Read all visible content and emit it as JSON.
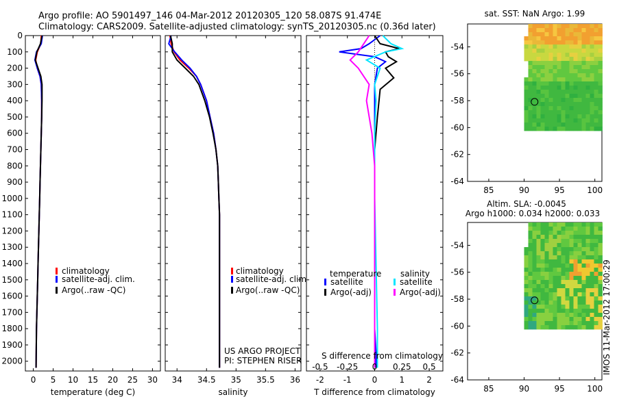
{
  "title_line1": "Argo profile: AO 5901497_146 04-Mar-2012 20120305_120 58.087S 91.474E",
  "title_line2": "Climatology: CARS2009. Satellite-adjusted climatology: synTS_20120305.nc (0.36d later)",
  "colors": {
    "climatology": "#ff0000",
    "satellite": "#0000ff",
    "argo": "#000000",
    "cyan": "#00e5ff",
    "magenta": "#ff00ff"
  },
  "chart_data": [
    {
      "type": "line",
      "id": "temperature",
      "xlabel": "temperature (deg C)",
      "ylabel": "",
      "xlim": [
        -2,
        32
      ],
      "ylim": [
        2060,
        0
      ],
      "xticks": [
        "0",
        "5",
        "10",
        "15",
        "20",
        "25",
        "30"
      ],
      "xtick_values": [
        0,
        5,
        10,
        15,
        20,
        25,
        30
      ],
      "yticks": [
        "0",
        "100",
        "200",
        "300",
        "400",
        "500",
        "600",
        "700",
        "800",
        "900",
        "1000",
        "1100",
        "1200",
        "1300",
        "1400",
        "1500",
        "1600",
        "1700",
        "1800",
        "1900",
        "2000"
      ],
      "ytick_values": [
        0,
        100,
        200,
        300,
        400,
        500,
        600,
        700,
        800,
        900,
        1000,
        1100,
        1200,
        1300,
        1400,
        1500,
        1600,
        1700,
        1800,
        1900,
        2000
      ],
      "legend": [
        "climatology",
        "satellite-adj. clim.",
        "Argo(..raw -QC)"
      ],
      "series": [
        {
          "name": "climatology",
          "color": "#ff0000",
          "x": [
            2.0,
            1.9,
            1.0,
            0.6,
            1.0,
            1.7,
            2.0,
            2.1,
            2.1,
            2.0,
            1.9,
            1.8,
            1.7,
            1.6,
            1.5,
            1.4,
            1.3,
            1.2,
            1.1,
            1.0,
            0.9,
            0.8,
            0.7
          ],
          "y": [
            0,
            50,
            100,
            150,
            200,
            250,
            300,
            400,
            500,
            600,
            700,
            800,
            900,
            1000,
            1100,
            1200,
            1300,
            1400,
            1500,
            1600,
            1700,
            1800,
            2040
          ]
        },
        {
          "name": "satellite-adj. clim.",
          "color": "#0000ff",
          "x": [
            2.3,
            2.0,
            0.8,
            0.4,
            1.0,
            1.7,
            2.0,
            2.1,
            2.1,
            2.0,
            1.9,
            1.8,
            1.7,
            1.6,
            1.5,
            1.4,
            1.3,
            1.2,
            1.1,
            1.0,
            0.9,
            0.8,
            0.7
          ],
          "y": [
            0,
            50,
            100,
            150,
            200,
            250,
            300,
            400,
            500,
            600,
            700,
            800,
            900,
            1000,
            1100,
            1200,
            1300,
            1400,
            1500,
            1600,
            1700,
            1800,
            2040
          ]
        },
        {
          "name": "Argo(..raw -QC)",
          "color": "#000000",
          "x": [
            2.2,
            1.8,
            0.9,
            0.5,
            1.2,
            1.9,
            2.2,
            2.2,
            2.1,
            2.0,
            1.9,
            1.8,
            1.7,
            1.6,
            1.5,
            1.4,
            1.3,
            1.2,
            1.1,
            1.0,
            0.9,
            0.8,
            0.7
          ],
          "y": [
            0,
            50,
            100,
            150,
            200,
            250,
            300,
            400,
            500,
            600,
            700,
            800,
            900,
            1000,
            1100,
            1200,
            1300,
            1400,
            1500,
            1600,
            1700,
            1800,
            2040
          ]
        }
      ]
    },
    {
      "type": "line",
      "id": "salinity",
      "xlabel": "salinity",
      "xlim": [
        33.8,
        36.1
      ],
      "ylim": [
        2060,
        0
      ],
      "xticks": [
        "34",
        "34.5",
        "35",
        "35.5",
        "36"
      ],
      "xtick_values": [
        34,
        34.5,
        35,
        35.5,
        36
      ],
      "legend": [
        "climatology",
        "satellite-adj. clim.",
        "Argo(..raw -QC)"
      ],
      "footer_lines": [
        "US ARGO PROJECT",
        "PI: STEPHEN RISER"
      ],
      "series": [
        {
          "name": "climatology",
          "color": "#ff0000",
          "x": [
            33.88,
            33.9,
            33.95,
            34.05,
            34.2,
            34.33,
            34.4,
            34.5,
            34.56,
            34.62,
            34.66,
            34.69,
            34.7,
            34.71,
            34.72,
            34.72,
            34.72,
            34.72,
            34.72,
            34.72,
            34.72
          ],
          "y": [
            0,
            50,
            100,
            150,
            200,
            250,
            300,
            400,
            500,
            600,
            700,
            800,
            900,
            1000,
            1100,
            1200,
            1400,
            1600,
            1800,
            1950,
            2040
          ]
        },
        {
          "name": "satellite-adj. clim.",
          "color": "#0000ff",
          "x": [
            33.9,
            33.86,
            33.96,
            34.08,
            34.22,
            34.33,
            34.4,
            34.5,
            34.56,
            34.62,
            34.66,
            34.69,
            34.7,
            34.71,
            34.72,
            34.72,
            34.72,
            34.72,
            34.72,
            34.72,
            34.72
          ],
          "y": [
            0,
            50,
            100,
            150,
            200,
            250,
            300,
            400,
            500,
            600,
            700,
            800,
            900,
            1000,
            1100,
            1200,
            1400,
            1600,
            1800,
            1950,
            2040
          ]
        },
        {
          "name": "Argo(..raw -QC)",
          "color": "#000000",
          "x": [
            33.89,
            33.92,
            33.92,
            34.0,
            34.14,
            34.28,
            34.37,
            34.47,
            34.55,
            34.61,
            34.66,
            34.69,
            34.7,
            34.71,
            34.72,
            34.72,
            34.72,
            34.72,
            34.72,
            34.72,
            34.72
          ],
          "y": [
            0,
            50,
            100,
            150,
            200,
            250,
            300,
            400,
            500,
            600,
            700,
            800,
            900,
            1000,
            1100,
            1200,
            1400,
            1600,
            1800,
            1950,
            2040
          ]
        }
      ]
    },
    {
      "type": "line",
      "id": "difference",
      "xlabel": "T difference from climatology",
      "top_xlabel": "S difference from climatology",
      "xlim": [
        -2.5,
        2.5
      ],
      "ylim": [
        2060,
        0
      ],
      "xticks": [
        "-2",
        "-1",
        "0",
        "1",
        "2"
      ],
      "xtick_values": [
        -2,
        -1,
        0,
        1,
        2
      ],
      "top_xticks": [
        "-0.5",
        "-0.25",
        "0",
        "0.25",
        "0.5"
      ],
      "top_xtick_values": [
        -2,
        -1,
        0,
        1,
        2
      ],
      "legend_headers": [
        "temperature",
        "salinity"
      ],
      "legend": [
        "satellite",
        "Argo(-adj)",
        "satellite",
        "Argo(-adj)"
      ],
      "series": [
        {
          "name": "temperature satellite",
          "color": "#0000ff",
          "x": [
            0.2,
            -0.2,
            -0.5,
            -1.3,
            0.0,
            0.4,
            0.1,
            0.0,
            0.0,
            0.0,
            0.0,
            0.0,
            0.0,
            0.0,
            0.05,
            0.05
          ],
          "y": [
            0,
            50,
            80,
            100,
            130,
            160,
            200,
            300,
            400,
            600,
            800,
            1000,
            1400,
            1800,
            1950,
            2040
          ]
        },
        {
          "name": "temperature Argo(-adj)",
          "color": "#000000",
          "x": [
            0.0,
            0.2,
            0.9,
            0.4,
            0.5,
            0.8,
            0.4,
            0.7,
            0.2,
            0.1,
            0.0,
            0.0,
            0.0,
            0.0,
            0.0,
            0.0
          ],
          "y": [
            0,
            50,
            80,
            100,
            130,
            160,
            200,
            260,
            330,
            500,
            700,
            1000,
            1400,
            1800,
            1950,
            2040
          ]
        },
        {
          "name": "salinity satellite",
          "color": "#00e5ff",
          "x": [
            0.3,
            0.6,
            1.0,
            0.4,
            -0.3,
            0.2,
            0.0,
            0.05,
            0.0,
            0.0,
            0.0,
            0.05,
            0.1,
            0.1,
            0.1
          ],
          "y": [
            0,
            50,
            80,
            100,
            150,
            200,
            300,
            400,
            600,
            800,
            1000,
            1400,
            1800,
            1950,
            2040
          ]
        },
        {
          "name": "salinity Argo(-adj)",
          "color": "#ff00ff",
          "x": [
            -0.2,
            -0.4,
            -0.6,
            -0.9,
            -0.6,
            -0.2,
            -0.3,
            -0.1,
            0.0,
            0.0,
            0.0,
            0.0,
            0.0,
            0.0
          ],
          "y": [
            0,
            50,
            100,
            150,
            200,
            300,
            400,
            600,
            800,
            1000,
            1400,
            1800,
            1950,
            2040
          ]
        }
      ]
    },
    {
      "type": "heatmap",
      "id": "sst_map",
      "title": "sat. SST: NaN Argo: 1.99",
      "xlim": [
        82,
        101
      ],
      "ylim": [
        -64,
        -52.3
      ],
      "xticks": [
        "85",
        "90",
        "95",
        "100"
      ],
      "xtick_values": [
        85,
        90,
        95,
        100
      ],
      "yticks": [
        "-54",
        "-56",
        "-58",
        "-60",
        "-62",
        "-64"
      ],
      "ytick_values": [
        -54,
        -56,
        -58,
        -60,
        -62,
        -64
      ],
      "data_extent": {
        "lon": [
          90,
          101
        ],
        "lat": [
          -60,
          -52.3
        ]
      },
      "argo_position": {
        "lon": 91.474,
        "lat": -58.087
      }
    },
    {
      "type": "heatmap",
      "id": "sla_map",
      "title_line1": "Altim. SLA: -0.0045",
      "title_line2": "Argo h1000: 0.034 h2000: 0.033",
      "xlim": [
        82,
        101
      ],
      "ylim": [
        -64,
        -52.3
      ],
      "xticks": [
        "85",
        "90",
        "95",
        "100"
      ],
      "xtick_values": [
        85,
        90,
        95,
        100
      ],
      "yticks": [
        "-54",
        "-56",
        "-58",
        "-60",
        "-62",
        "-64"
      ],
      "ytick_values": [
        -54,
        -56,
        -58,
        -60,
        -62,
        -64
      ],
      "data_extent": {
        "lon": [
          90,
          101
        ],
        "lat": [
          -60,
          -52.3
        ]
      },
      "argo_position": {
        "lon": 91.474,
        "lat": -58.087
      }
    }
  ],
  "stamp": "IMOS 11-Mar-2012 17:00:29"
}
